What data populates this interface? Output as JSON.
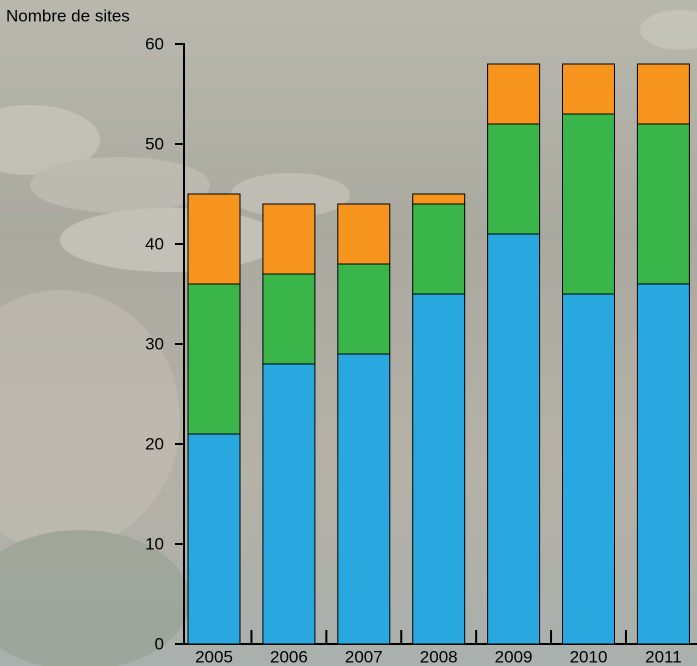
{
  "chart_data": {
    "type": "stacked-bar",
    "y_label": "Nombre de sites",
    "categories": [
      "2005",
      "2006",
      "2007",
      "2008",
      "2009",
      "2010",
      "2011"
    ],
    "series": [
      {
        "color": "#29a8e0",
        "values": [
          21,
          28,
          29,
          35,
          41,
          35,
          36
        ]
      },
      {
        "color": "#3ab54a",
        "values": [
          15,
          9,
          9,
          9,
          11,
          18,
          16
        ]
      },
      {
        "color": "#f7941d",
        "values": [
          9,
          7,
          6,
          1,
          6,
          5,
          6
        ]
      }
    ],
    "ylim": [
      0,
      60
    ],
    "yticks": [
      0,
      10,
      20,
      30,
      40,
      50,
      60
    ]
  }
}
